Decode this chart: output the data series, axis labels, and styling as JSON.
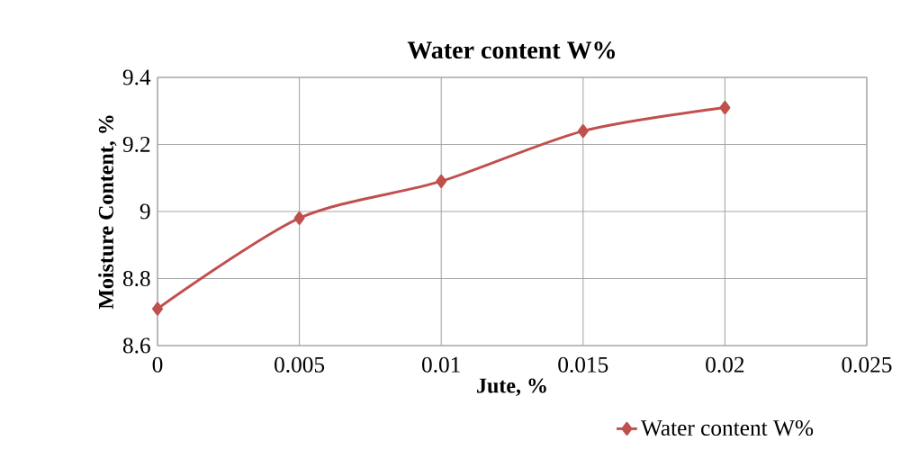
{
  "chart_data": {
    "type": "line",
    "title": "Water content W%",
    "xlabel": "Jute, %",
    "ylabel": "Moisture Content, %",
    "x": [
      0,
      0.005,
      0.01,
      0.015,
      0.02
    ],
    "series": [
      {
        "name": "Water content W%",
        "color": "#c0504d",
        "values": [
          8.71,
          8.98,
          9.09,
          9.24,
          9.31
        ]
      }
    ],
    "xlim": [
      0,
      0.025
    ],
    "xticks": [
      0,
      0.005,
      0.01,
      0.015,
      0.02,
      0.025
    ],
    "ylim": [
      8.6,
      9.4
    ],
    "yticks": [
      8.6,
      8.8,
      9,
      9.2,
      9.4
    ],
    "grid": true,
    "legend": "bottom right",
    "marker": "diamond",
    "line_style": "solid"
  }
}
